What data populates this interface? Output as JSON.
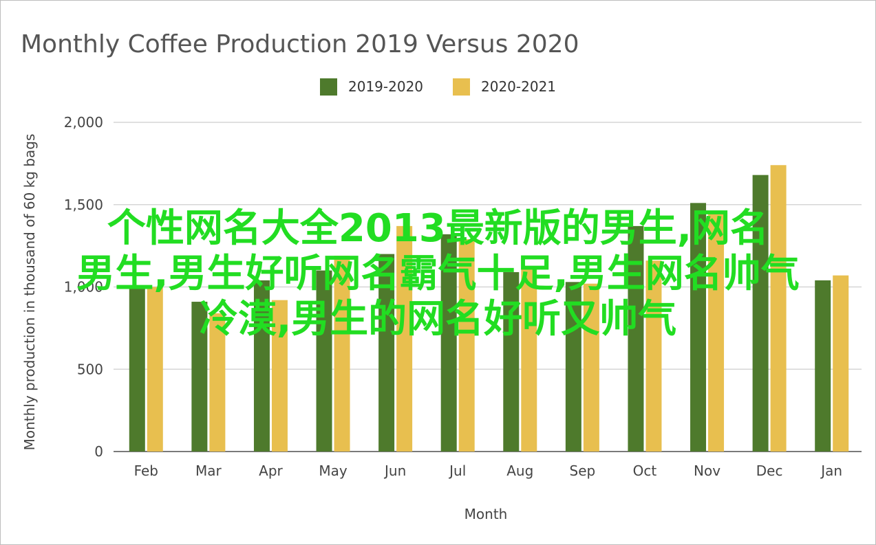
{
  "chart_data": {
    "type": "bar",
    "title": "Monthly Coffee Production 2019 Versus 2020",
    "xlabel": "Month",
    "ylabel": "Monthly production in thousand of 60 kg bags",
    "categories": [
      "Feb",
      "Mar",
      "Apr",
      "May",
      "Jun",
      "Jul",
      "Aug",
      "Sep",
      "Oct",
      "Nov",
      "Dec",
      "Jan"
    ],
    "series": [
      {
        "name": "2019-2020",
        "color": "#4e7a2c",
        "values": [
          1000,
          910,
          1040,
          1100,
          1200,
          1320,
          1090,
          1030,
          1370,
          1510,
          1680,
          1040
        ]
      },
      {
        "name": "2020-2021",
        "color": "#e8bf4f",
        "values": [
          1000,
          840,
          920,
          1190,
          1370,
          1290,
          1120,
          1020,
          1160,
          1450,
          1740,
          1070
        ]
      }
    ],
    "ylim": [
      0,
      2000
    ],
    "yticks": [
      0,
      500,
      1000,
      1500,
      2000
    ],
    "ytick_labels": [
      "0",
      "500",
      "1,000",
      "1,500",
      "2,000"
    ],
    "grid": true,
    "legend_position": "top"
  },
  "overlay_text": {
    "line1": "个性网名大全2013最新版的男生,网名",
    "line2": "男生,男生好听网名霸气十足,男生网名帅气",
    "line3": "冷漠,男生的网名好听又帅气"
  }
}
